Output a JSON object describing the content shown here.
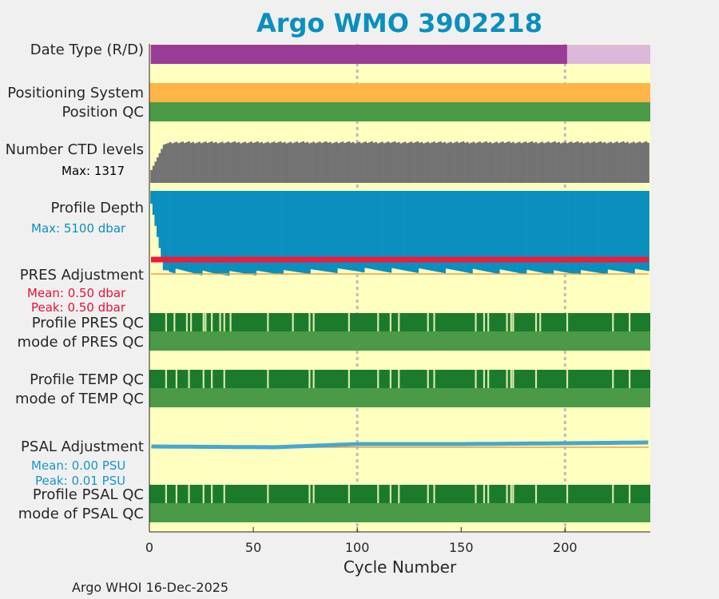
{
  "title": "Argo WMO 3902218",
  "footer": "Argo WHOI 16-Dec-2025",
  "colors": {
    "background": "#ffffc0",
    "realtime": "#9a3d9a",
    "delayed": "#dcb8dc",
    "positioning": "#fdb645",
    "qc_good": "#4a9a48",
    "profile_qc": "#1c7a2c",
    "ctd": "#737373",
    "depth": "#0a8fbf",
    "pres_adj": "#ee1a3a",
    "psal_adj": "#45a8d0",
    "stripe": "#d8e8a8"
  },
  "rows": {
    "date_type": "Date Type (R/D)",
    "positioning": "Positioning System",
    "position_qc": "Position QC",
    "ctd_levels": "Number CTD levels",
    "ctd_max": "Max: 1317",
    "profile_depth": "Profile Depth",
    "depth_max": "Max: 5100 dbar",
    "pres_adjustment": "PRES Adjustment",
    "pres_mean": "Mean: 0.50 dbar",
    "pres_peak": "Peak: 0.50 dbar",
    "profile_pres_qc": "Profile PRES QC",
    "mode_pres_qc": "mode of PRES QC",
    "profile_temp_qc": "Profile TEMP QC",
    "mode_temp_qc": "mode of TEMP QC",
    "psal_adjustment": "PSAL Adjustment",
    "psal_mean": "Mean: 0.00 PSU",
    "psal_peak": "Peak: 0.01 PSU",
    "profile_psal_qc": "Profile PSAL QC",
    "mode_psal_qc": "mode of PSAL QC"
  },
  "chart_data": {
    "type": "bar",
    "xlabel": "Cycle Number",
    "xlim": [
      0,
      241
    ],
    "xticks": [
      0,
      50,
      100,
      150,
      200
    ],
    "xtick_labels": [
      "0",
      "50",
      "100",
      "150",
      "200"
    ],
    "vertical_gridlines_at_cycle": [
      100,
      200
    ],
    "date_type": {
      "realtime_cycles": [
        1,
        201
      ],
      "delayed_cycles": [
        201,
        241
      ]
    },
    "ctd_levels_max": 1317,
    "ctd_levels": [
      [
        1,
        400
      ],
      [
        7,
        1190
      ],
      [
        10,
        1260
      ],
      [
        240,
        1260
      ]
    ],
    "profile_depth_max_dbar": 5100,
    "profile_depth_dbar": [
      [
        1,
        750
      ],
      [
        7,
        4600
      ],
      [
        30,
        4800
      ],
      [
        60,
        4750
      ],
      [
        100,
        4600
      ],
      [
        150,
        4650
      ],
      [
        200,
        4750
      ],
      [
        240,
        4650
      ]
    ],
    "pres_adjustment_dbar": {
      "mean": 0.5,
      "peak": 0.5
    },
    "psal_adjustment_psu": [
      [
        1,
        0.001
      ],
      [
        60,
        0.0
      ],
      [
        100,
        0.004
      ],
      [
        150,
        0.004
      ],
      [
        200,
        0.005
      ],
      [
        240,
        0.006
      ]
    ],
    "psal_adjustment_summary": {
      "mean": 0.0,
      "peak": 0.01
    },
    "profile_pres_qc_flagged_cycles": [
      8,
      12,
      18,
      20,
      26,
      27,
      30,
      34,
      36,
      39,
      57,
      69,
      77,
      79,
      96,
      110,
      116,
      120,
      134,
      137,
      157,
      161,
      163,
      172,
      174,
      175,
      186,
      188,
      201,
      223,
      231
    ],
    "profile_temp_qc_flagged_cycles": [
      8,
      13,
      19,
      26,
      30,
      36,
      57,
      77,
      79,
      96,
      110,
      116,
      120,
      134,
      137,
      157,
      161,
      163,
      172,
      174,
      175,
      186,
      201,
      223,
      231
    ],
    "profile_psal_qc_flagged_cycles": [
      8,
      13,
      19,
      26,
      30,
      36,
      57,
      77,
      79,
      96,
      110,
      116,
      120,
      134,
      137,
      157,
      161,
      163,
      172,
      174,
      175,
      186,
      201,
      223,
      231
    ]
  }
}
